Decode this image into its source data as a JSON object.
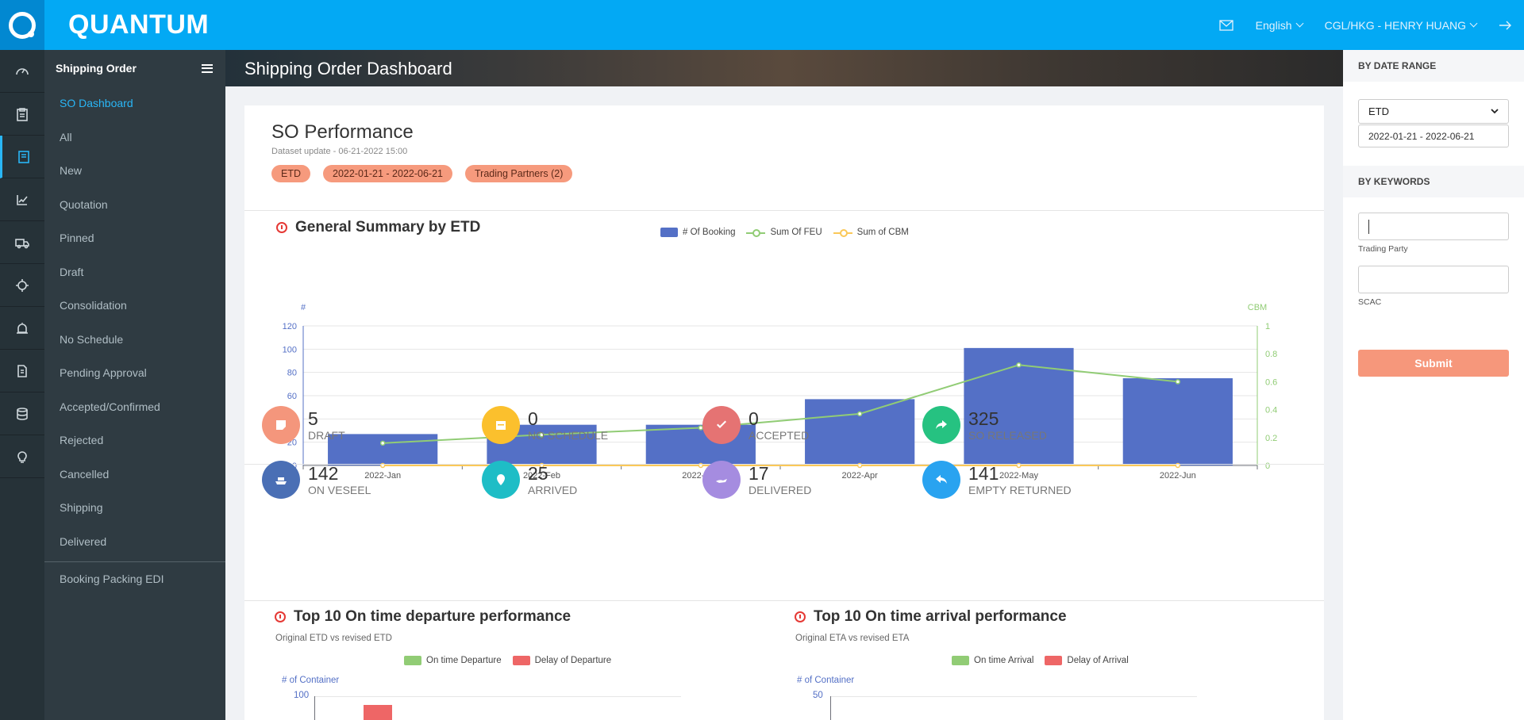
{
  "topbar": {
    "brand": "QUANTUM",
    "language": "English",
    "user": "CGL/HKG - HENRY HUANG"
  },
  "rail_icons": [
    "dashboard-icon",
    "clipboard-icon",
    "book-icon",
    "edit-chart-icon",
    "truck-icon",
    "crosshair-icon",
    "alarm-icon",
    "document-icon",
    "database-icon",
    "lightbulb-icon"
  ],
  "sidebar": {
    "title": "Shipping Order",
    "items": [
      {
        "label": "SO Dashboard",
        "active": true
      },
      {
        "label": "All"
      },
      {
        "label": "New"
      },
      {
        "label": "Quotation"
      },
      {
        "label": "Pinned"
      },
      {
        "label": "Draft"
      },
      {
        "label": "Consolidation"
      },
      {
        "label": "No Schedule"
      },
      {
        "label": "Pending Approval"
      },
      {
        "label": "Accepted/Confirmed"
      },
      {
        "label": "Rejected"
      },
      {
        "label": "Cancelled"
      },
      {
        "label": "Shipping"
      },
      {
        "label": "Delivered"
      }
    ],
    "extra_item": "Booking Packing EDI"
  },
  "banner": {
    "title": "Shipping Order Dashboard"
  },
  "performance": {
    "title": "SO Performance",
    "dataset_update": "Dataset update -  06-21-2022 15:00",
    "chips": [
      "ETD",
      "2022-01-21 - 2022-06-21",
      "Trading Partners (2)"
    ]
  },
  "chart_data": [
    {
      "type": "bar",
      "title": "General Summary by ETD",
      "categories": [
        "2022-Jan",
        "2022-Feb",
        "2022-Mar",
        "2022-Apr",
        "2022-May",
        "2022-Jun"
      ],
      "series": [
        {
          "name": "# Of Booking",
          "kind": "bar",
          "axis": "left",
          "color": "#5470c6",
          "values": [
            27,
            35,
            35,
            57,
            101,
            75
          ]
        },
        {
          "name": "Sum Of FEU",
          "kind": "line",
          "axis": "right",
          "color": "#91cc75",
          "values": [
            0.16,
            0.22,
            0.27,
            0.37,
            0.72,
            0.6
          ]
        },
        {
          "name": "Sum of CBM",
          "kind": "line",
          "axis": "right",
          "color": "#fac858",
          "values": [
            0,
            0,
            0,
            0,
            0,
            0
          ]
        }
      ],
      "ylabel_left": "#",
      "ylabel_right": "CBM",
      "ylim_left": [
        0,
        120
      ],
      "yticks_left": [
        0,
        20,
        40,
        60,
        80,
        100,
        120
      ],
      "ylim_right": [
        0,
        1
      ],
      "yticks_right": [
        0,
        0.2,
        0.4,
        0.6,
        0.8,
        1
      ],
      "legend": "top-center",
      "grid": true
    },
    {
      "type": "bar",
      "title": "Top 10 On time departure performance",
      "subtitle": "Original ETD vs revised ETD",
      "ylabel": "# of Container",
      "series": [
        {
          "name": "On time Departure",
          "color": "#91cc75"
        },
        {
          "name": "Delay of Departure",
          "color": "#ee6666"
        }
      ],
      "yticks_visible": [
        100
      ]
    },
    {
      "type": "bar",
      "title": "Top 10 On time arrival performance",
      "subtitle": "Original ETA vs revised ETA",
      "ylabel": "# of Container",
      "series": [
        {
          "name": "On time Arrival",
          "color": "#91cc75"
        },
        {
          "name": "Delay of Arrival",
          "color": "#ee6666"
        }
      ],
      "yticks_visible": [
        50
      ]
    }
  ],
  "stats": [
    {
      "value": "5",
      "label": "DRAFT",
      "color": "#f4967c",
      "icon": "note-icon"
    },
    {
      "value": "0",
      "label": "NO SCHEDULE",
      "color": "#fbc02d",
      "icon": "calendar-icon"
    },
    {
      "value": "0",
      "label": "ACCEPTED",
      "color": "#e57373",
      "icon": "check-icon"
    },
    {
      "value": "325",
      "label": "SO RELEASED",
      "color": "#26c281",
      "icon": "share-icon"
    },
    {
      "value": "142",
      "label": "ON VESEEL",
      "color": "#4a6fb5",
      "icon": "ship-icon"
    },
    {
      "value": "25",
      "label": "ARRIVED",
      "color": "#1ebdc6",
      "icon": "location-pin-icon"
    },
    {
      "value": "17",
      "label": "DELIVERED",
      "color": "#a58ce0",
      "icon": "hand-icon"
    },
    {
      "value": "141",
      "label": "EMPTY RETURNED",
      "color": "#29a3f0",
      "icon": "return-arrow-icon"
    }
  ],
  "filters": {
    "date_range_title": "BY DATE RANGE",
    "date_type": "ETD",
    "date_value": "2022-01-21 - 2022-06-21",
    "keywords_title": "BY KEYWORDS",
    "trading_party_label": "Trading Party",
    "scac_label": "SCAC",
    "submit_label": "Submit"
  }
}
